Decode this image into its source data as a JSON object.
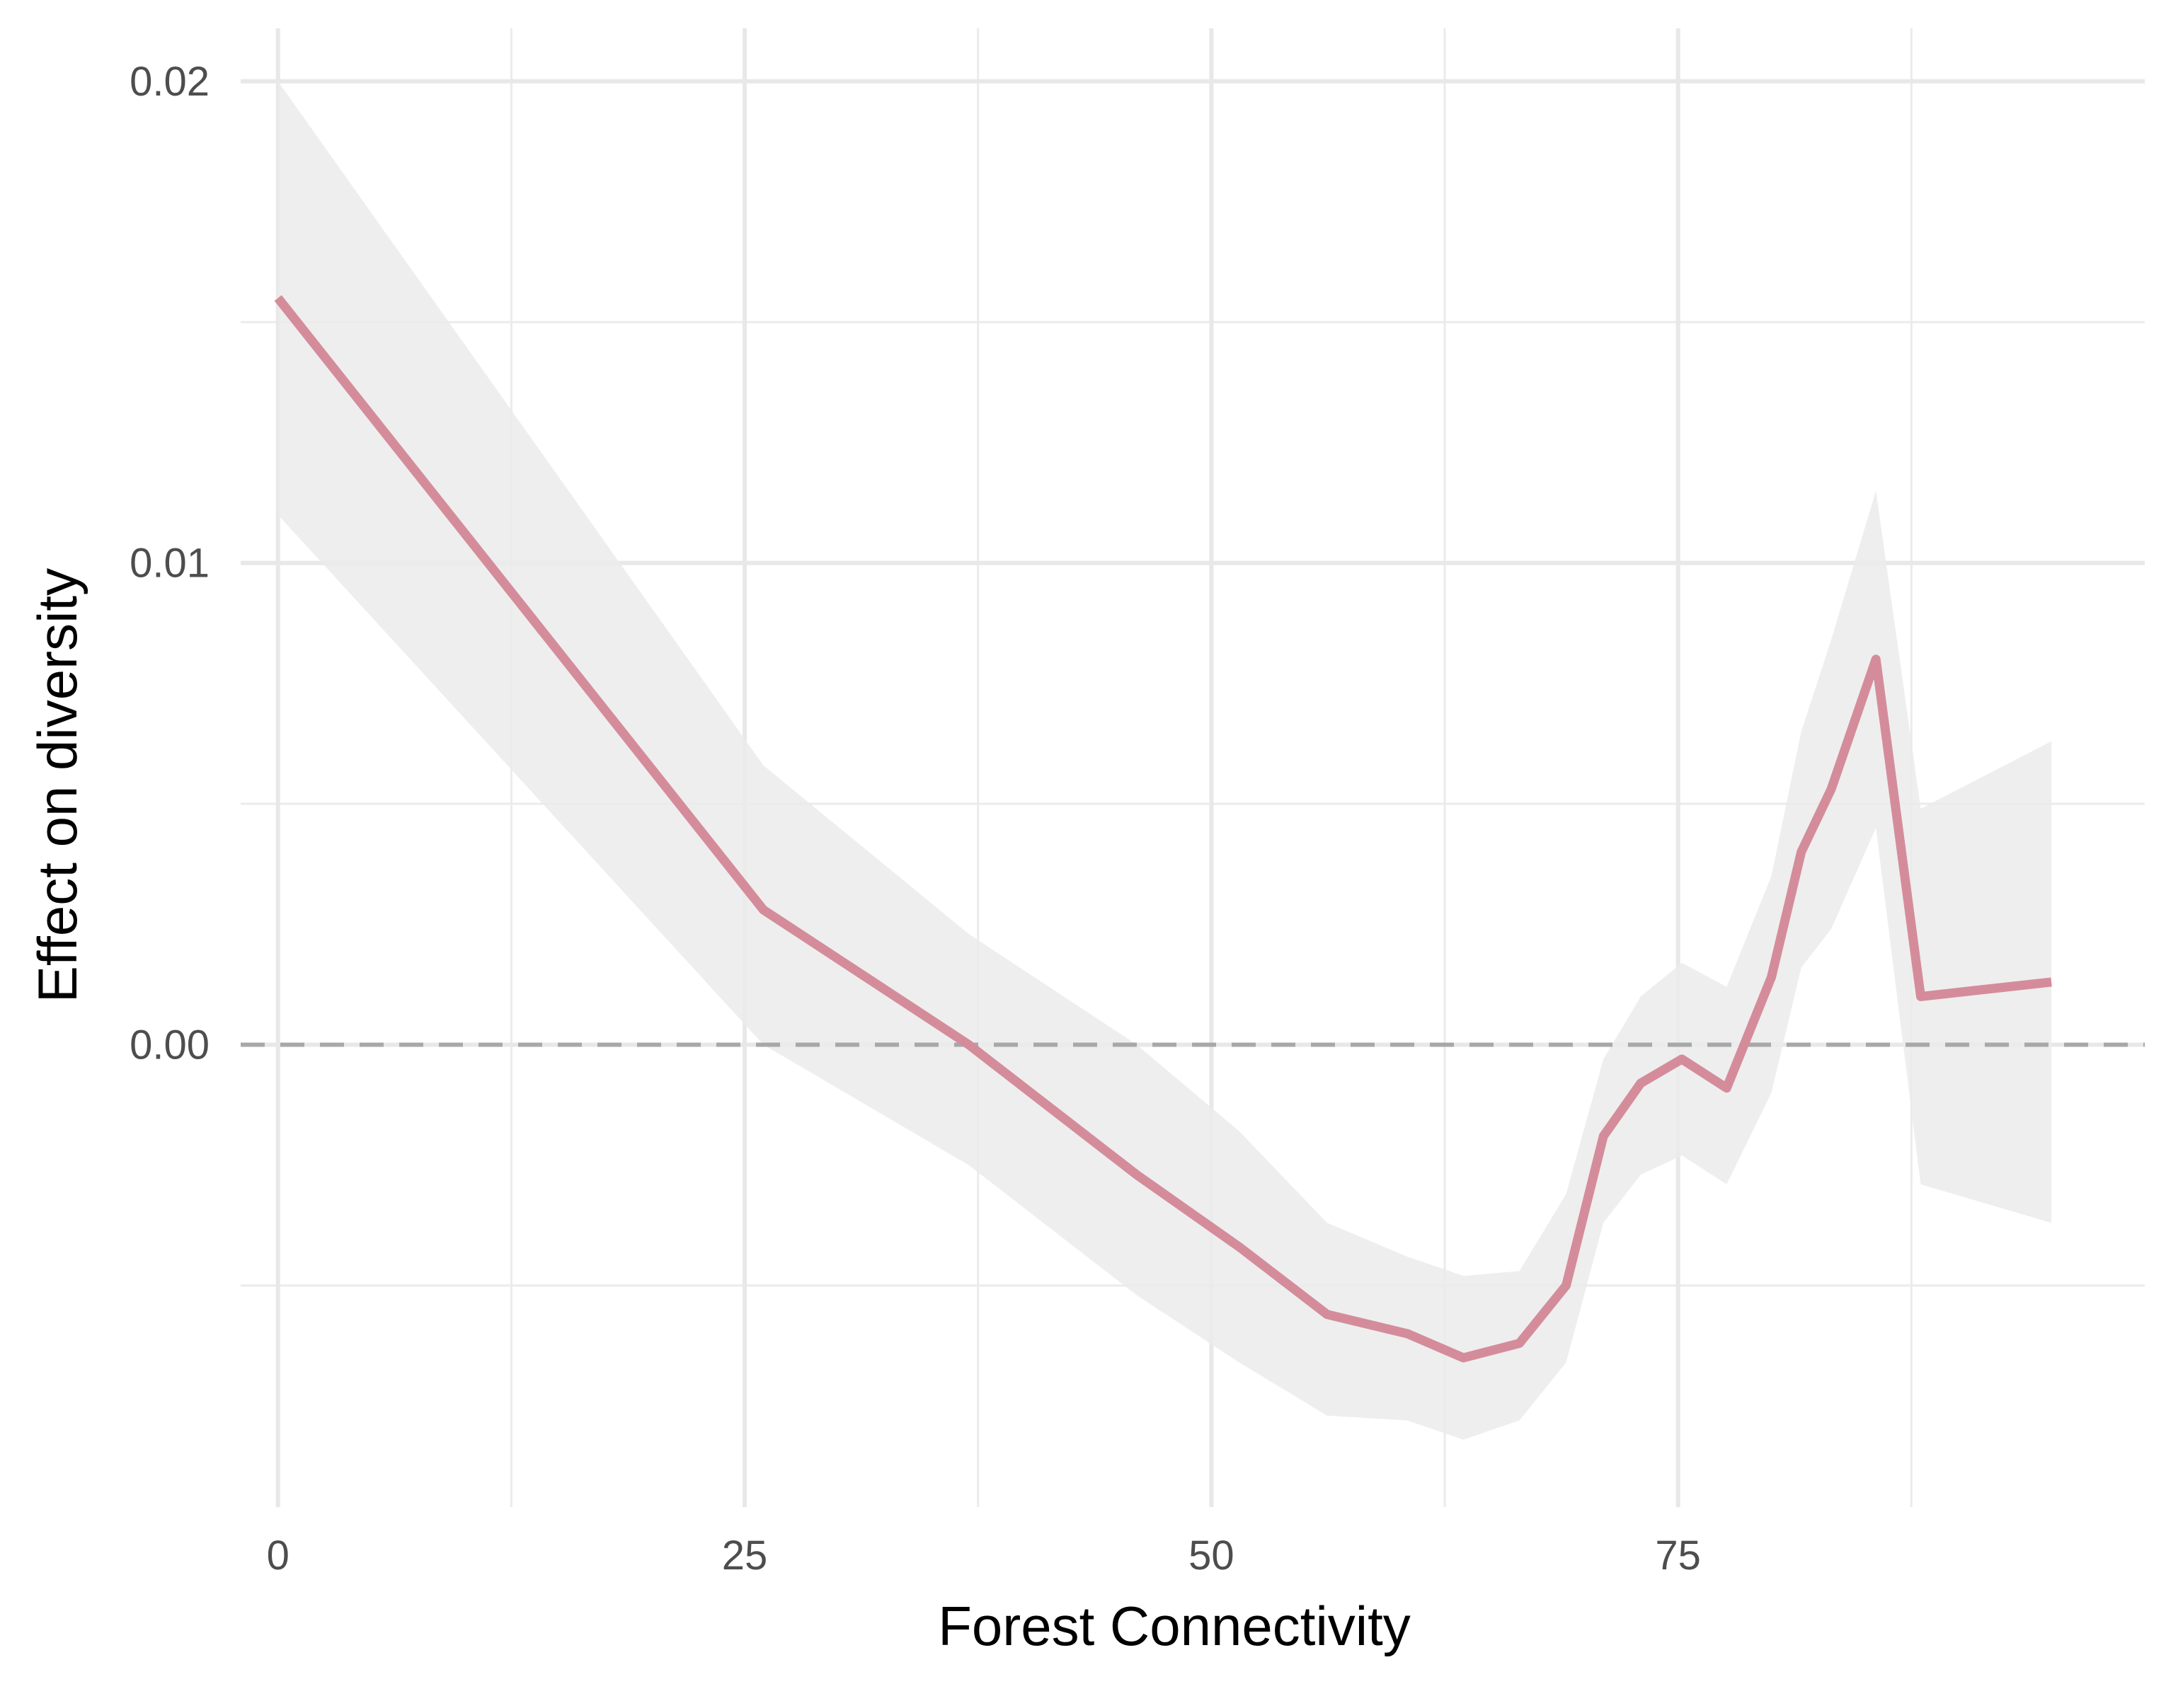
{
  "chart_data": {
    "type": "line",
    "title": "",
    "xlabel": "Forest Connectivity",
    "ylabel": "Effect on diversity",
    "xlim": [
      -2,
      100
    ],
    "ylim": [
      -0.0096,
      0.0211
    ],
    "x_ticks": [
      {
        "value": 0,
        "label": "0"
      },
      {
        "value": 25,
        "label": "25"
      },
      {
        "value": 50,
        "label": "50"
      },
      {
        "value": 75,
        "label": "75"
      }
    ],
    "x_minor_ticks": [
      12.5,
      37.5,
      62.5,
      87.5
    ],
    "y_ticks": [
      {
        "value": 0.0,
        "label": "0.00"
      },
      {
        "value": 0.01,
        "label": "0.01"
      },
      {
        "value": 0.02,
        "label": "0.02"
      }
    ],
    "y_minor_ticks": [
      -0.005,
      0.005,
      0.015
    ],
    "grid": true,
    "reference_line": {
      "y": 0,
      "style": "dashed",
      "color": "#a8a8a8"
    },
    "series": [
      {
        "color": "#d48c9b",
        "band_color": "#ebebeb",
        "points": [
          {
            "x": 0.0,
            "y": 0.0155,
            "lo": 0.011,
            "hi": 0.02
          },
          {
            "x": 26.0,
            "y": 0.0028,
            "lo": 0.0,
            "hi": 0.0058
          },
          {
            "x": 37.0,
            "y": 0.0,
            "lo": -0.0025,
            "hi": 0.0023
          },
          {
            "x": 46.0,
            "y": -0.0027,
            "lo": -0.0052,
            "hi": 0.0
          },
          {
            "x": 51.5,
            "y": -0.0042,
            "lo": -0.0066,
            "hi": -0.0018
          },
          {
            "x": 56.2,
            "y": -0.0056,
            "lo": -0.0077,
            "hi": -0.0037
          },
          {
            "x": 60.5,
            "y": -0.006,
            "lo": -0.0078,
            "hi": -0.0044
          },
          {
            "x": 63.5,
            "y": -0.0065,
            "lo": -0.0082,
            "hi": -0.0048
          },
          {
            "x": 66.5,
            "y": -0.0062,
            "lo": -0.0078,
            "hi": -0.0047
          },
          {
            "x": 69.0,
            "y": -0.005,
            "lo": -0.0066,
            "hi": -0.0031
          },
          {
            "x": 71.0,
            "y": -0.0019,
            "lo": -0.0037,
            "hi": -0.0003
          },
          {
            "x": 73.0,
            "y": -0.0008,
            "lo": -0.0027,
            "hi": 0.001
          },
          {
            "x": 75.2,
            "y": -0.0003,
            "lo": -0.0023,
            "hi": 0.0017
          },
          {
            "x": 77.6,
            "y": -0.0009,
            "lo": -0.0029,
            "hi": 0.0012
          },
          {
            "x": 80.0,
            "y": 0.0014,
            "lo": -0.001,
            "hi": 0.0035
          },
          {
            "x": 81.6,
            "y": 0.004,
            "lo": 0.0016,
            "hi": 0.0065
          },
          {
            "x": 83.2,
            "y": 0.0053,
            "lo": 0.0024,
            "hi": 0.0084
          },
          {
            "x": 85.6,
            "y": 0.008,
            "lo": 0.0045,
            "hi": 0.0115
          },
          {
            "x": 88.0,
            "y": 0.001,
            "lo": -0.0029,
            "hi": 0.0049
          },
          {
            "x": 95.0,
            "y": 0.0013,
            "lo": -0.0037,
            "hi": 0.0063
          }
        ]
      }
    ]
  }
}
